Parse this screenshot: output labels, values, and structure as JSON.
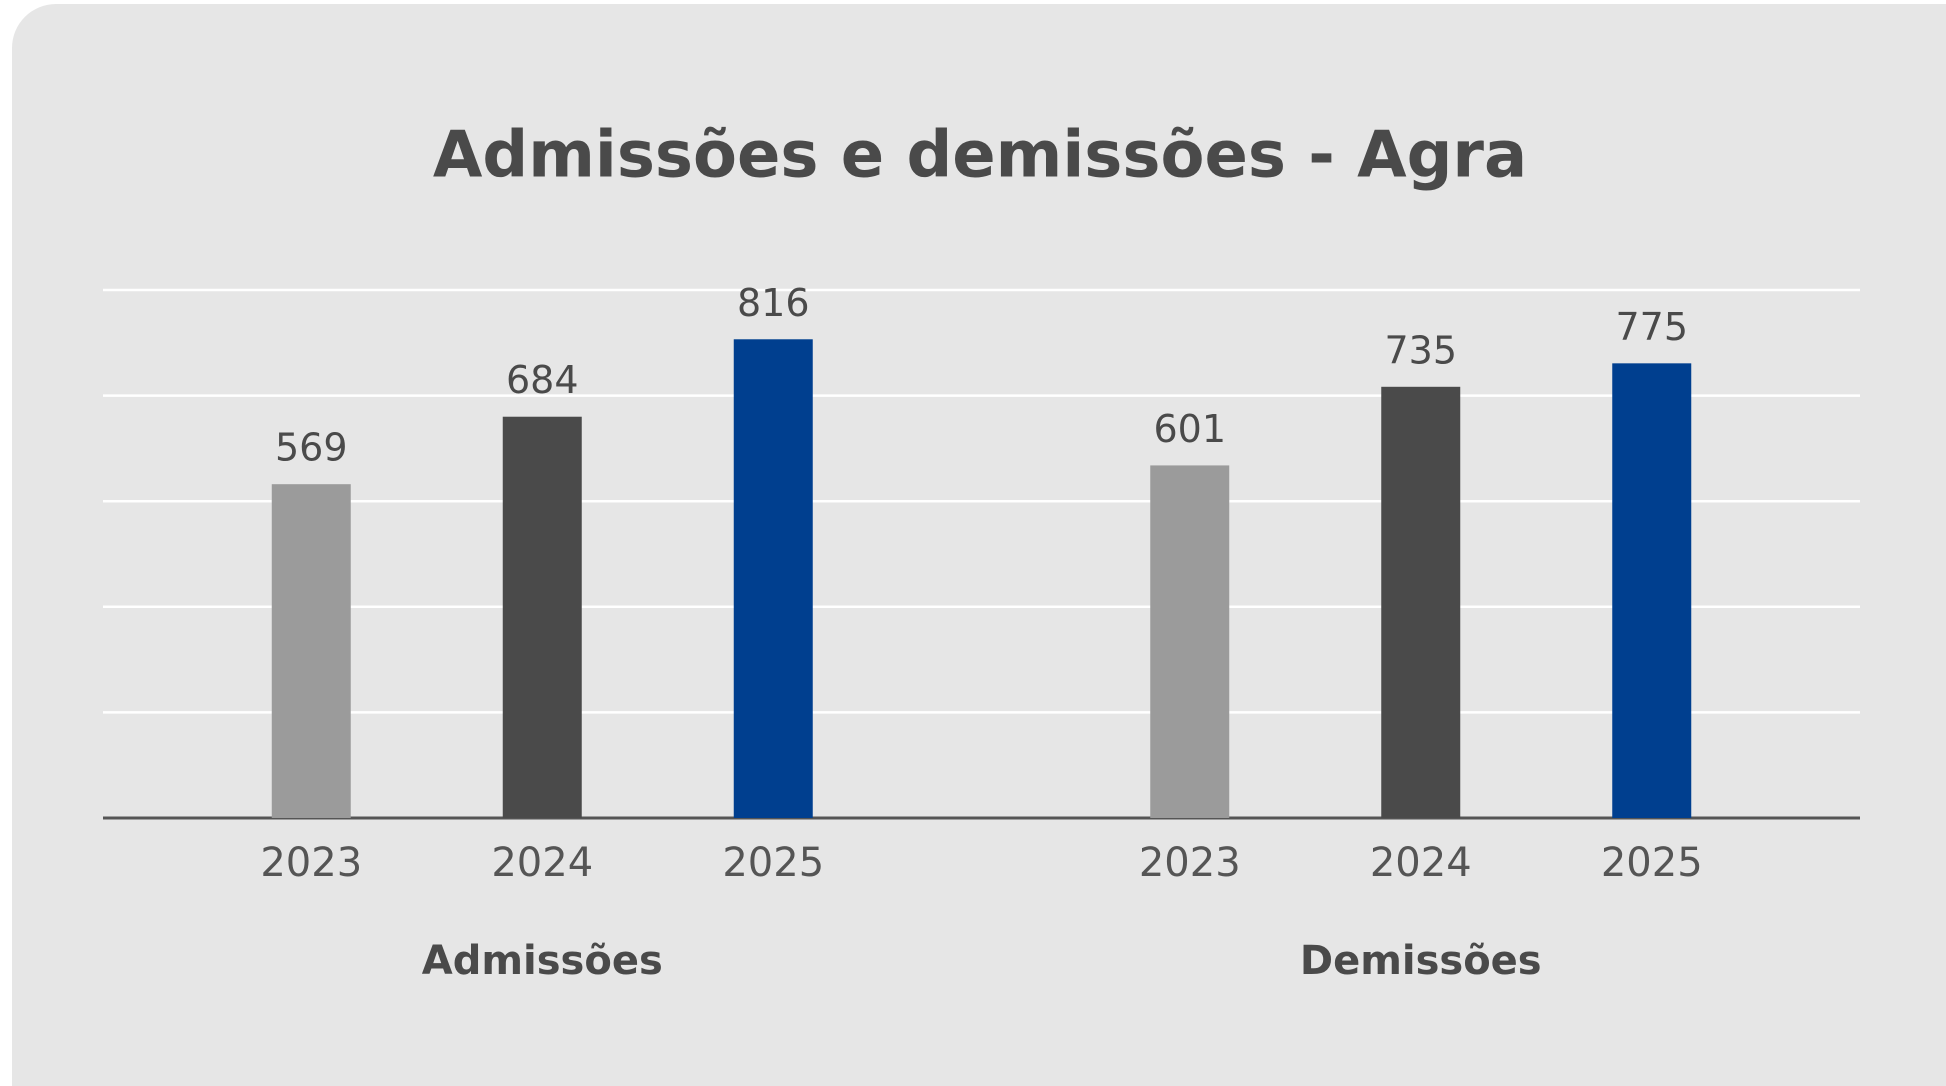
{
  "chart_data": {
    "type": "bar",
    "title": "Admissões e demissões - Agra",
    "categories": [
      "Admissões",
      "Demissões"
    ],
    "series": [
      {
        "name": "2023",
        "color": "#9b9b9b",
        "values": [
          569,
          601
        ]
      },
      {
        "name": "2024",
        "color": "#4a4a4a",
        "values": [
          684,
          735
        ]
      },
      {
        "name": "2025",
        "color": "#003f8f",
        "values": [
          816,
          775
        ]
      }
    ],
    "ylim": [
      0,
      900
    ],
    "yticks": [
      0,
      180,
      360,
      540,
      720,
      900
    ],
    "grid": true
  }
}
